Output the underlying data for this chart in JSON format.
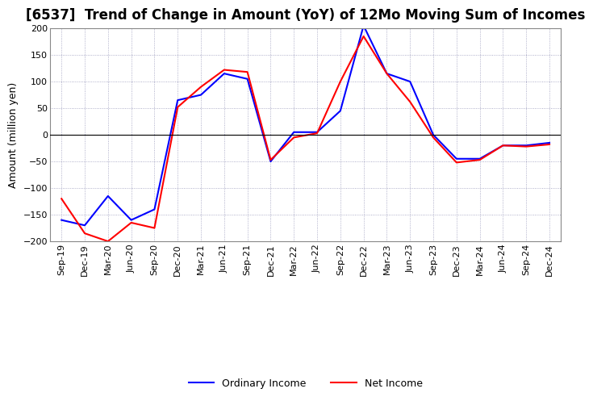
{
  "title": "[6537]  Trend of Change in Amount (YoY) of 12Mo Moving Sum of Incomes",
  "ylabel": "Amount (million yen)",
  "x_labels": [
    "Sep-19",
    "Dec-19",
    "Mar-20",
    "Jun-20",
    "Sep-20",
    "Dec-20",
    "Mar-21",
    "Jun-21",
    "Sep-21",
    "Dec-21",
    "Mar-22",
    "Jun-22",
    "Sep-22",
    "Dec-22",
    "Mar-23",
    "Jun-23",
    "Sep-23",
    "Dec-23",
    "Mar-24",
    "Jun-24",
    "Sep-24",
    "Dec-24"
  ],
  "ordinary_income": [
    -160,
    -170,
    -115,
    -160,
    -140,
    65,
    75,
    115,
    105,
    -50,
    5,
    5,
    45,
    205,
    115,
    100,
    0,
    -45,
    -45,
    -20,
    -20,
    -15
  ],
  "net_income": [
    -120,
    -185,
    -200,
    -165,
    -175,
    52,
    90,
    122,
    118,
    -47,
    -5,
    3,
    100,
    185,
    115,
    62,
    -5,
    -52,
    -47,
    -20,
    -22,
    -18
  ],
  "ylim": [
    -200,
    200
  ],
  "yticks": [
    -200,
    -150,
    -100,
    -50,
    0,
    50,
    100,
    150,
    200
  ],
  "ordinary_color": "#0000FF",
  "net_color": "#FF0000",
  "background_color": "#FFFFFF",
  "grid_color": "#9999BB",
  "title_fontsize": 12,
  "label_fontsize": 9,
  "tick_fontsize": 8,
  "legend_fontsize": 9
}
